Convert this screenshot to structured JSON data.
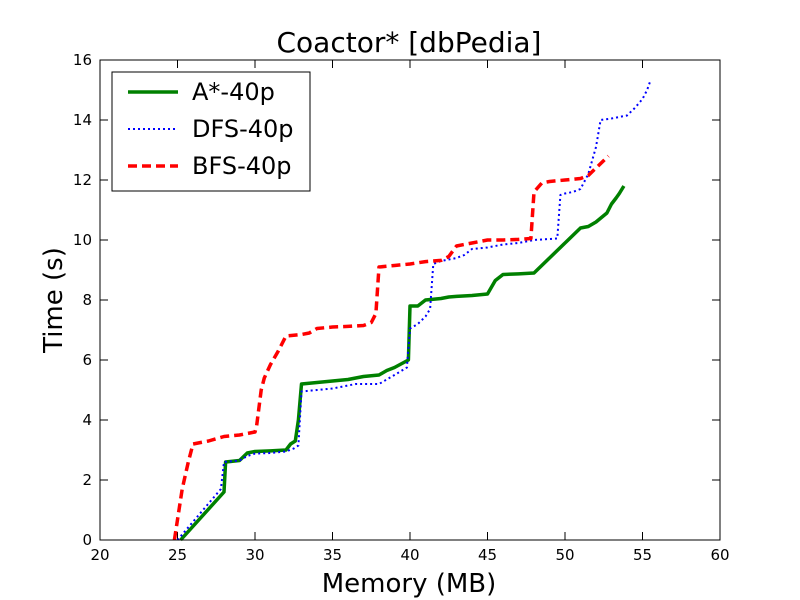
{
  "chart_data": {
    "type": "line",
    "title": "Coactor* [dbPedia]",
    "xlabel": "Memory (MB)",
    "ylabel": "Time (s)",
    "xlim": [
      20,
      60
    ],
    "ylim": [
      0,
      16
    ],
    "xticks": [
      20,
      25,
      30,
      35,
      40,
      45,
      50,
      55,
      60
    ],
    "yticks": [
      0,
      2,
      4,
      6,
      8,
      10,
      12,
      14,
      16
    ],
    "grid": false,
    "legend": "top-left",
    "series": [
      {
        "name": "A*-40p",
        "color": "#008000",
        "style": "solid",
        "points": [
          [
            25.2,
            0.0
          ],
          [
            28.0,
            1.6
          ],
          [
            28.1,
            2.6
          ],
          [
            29.0,
            2.65
          ],
          [
            29.5,
            2.9
          ],
          [
            30.0,
            2.95
          ],
          [
            31.0,
            2.97
          ],
          [
            32.0,
            3.0
          ],
          [
            32.3,
            3.2
          ],
          [
            32.6,
            3.3
          ],
          [
            32.8,
            4.0
          ],
          [
            33.0,
            5.2
          ],
          [
            34.0,
            5.25
          ],
          [
            35.0,
            5.3
          ],
          [
            36.0,
            5.35
          ],
          [
            37.0,
            5.45
          ],
          [
            38.0,
            5.5
          ],
          [
            38.5,
            5.65
          ],
          [
            39.0,
            5.75
          ],
          [
            39.9,
            6.0
          ],
          [
            40.0,
            7.8
          ],
          [
            40.5,
            7.8
          ],
          [
            41.0,
            8.0
          ],
          [
            42.0,
            8.05
          ],
          [
            42.5,
            8.1
          ],
          [
            43.0,
            8.12
          ],
          [
            44.0,
            8.15
          ],
          [
            45.0,
            8.2
          ],
          [
            45.5,
            8.65
          ],
          [
            46.0,
            8.85
          ],
          [
            47.0,
            8.87
          ],
          [
            48.0,
            8.9
          ],
          [
            51.0,
            10.4
          ],
          [
            51.5,
            10.45
          ],
          [
            52.0,
            10.6
          ],
          [
            52.7,
            10.9
          ],
          [
            53.0,
            11.2
          ],
          [
            53.3,
            11.4
          ],
          [
            53.5,
            11.55
          ],
          [
            53.8,
            11.8
          ]
        ]
      },
      {
        "name": "DFS-40p",
        "color": "#0000ff",
        "style": "dotted",
        "points": [
          [
            25.0,
            0.0
          ],
          [
            27.8,
            1.7
          ],
          [
            28.0,
            2.6
          ],
          [
            29.0,
            2.65
          ],
          [
            29.5,
            2.8
          ],
          [
            30.0,
            2.88
          ],
          [
            31.0,
            2.9
          ],
          [
            32.0,
            2.95
          ],
          [
            32.5,
            3.05
          ],
          [
            32.8,
            3.15
          ],
          [
            33.0,
            4.95
          ],
          [
            34.0,
            5.0
          ],
          [
            35.0,
            5.05
          ],
          [
            36.0,
            5.15
          ],
          [
            36.5,
            5.2
          ],
          [
            37.0,
            5.2
          ],
          [
            38.0,
            5.2
          ],
          [
            39.0,
            5.5
          ],
          [
            39.8,
            5.75
          ],
          [
            40.0,
            7.05
          ],
          [
            40.5,
            7.2
          ],
          [
            41.0,
            7.45
          ],
          [
            41.3,
            7.7
          ],
          [
            41.5,
            9.2
          ],
          [
            42.0,
            9.3
          ],
          [
            42.5,
            9.35
          ],
          [
            43.0,
            9.4
          ],
          [
            43.5,
            9.5
          ],
          [
            44.0,
            9.7
          ],
          [
            45.0,
            9.75
          ],
          [
            46.0,
            9.85
          ],
          [
            47.0,
            9.9
          ],
          [
            48.0,
            10.0
          ],
          [
            49.5,
            10.05
          ],
          [
            49.7,
            11.5
          ],
          [
            50.0,
            11.55
          ],
          [
            50.5,
            11.6
          ],
          [
            51.0,
            11.7
          ],
          [
            51.5,
            12.2
          ],
          [
            52.0,
            13.1
          ],
          [
            52.3,
            14.0
          ],
          [
            53.0,
            14.05
          ],
          [
            54.0,
            14.15
          ],
          [
            54.5,
            14.4
          ],
          [
            55.0,
            14.7
          ],
          [
            55.3,
            15.0
          ],
          [
            55.5,
            15.3
          ]
        ]
      },
      {
        "name": "BFS-40p",
        "color": "#ff0000",
        "style": "dashed",
        "points": [
          [
            24.8,
            0.0
          ],
          [
            25.3,
            1.7
          ],
          [
            25.7,
            2.6
          ],
          [
            26.0,
            3.2
          ],
          [
            27.0,
            3.3
          ],
          [
            28.0,
            3.45
          ],
          [
            29.0,
            3.5
          ],
          [
            30.0,
            3.6
          ],
          [
            30.1,
            3.8
          ],
          [
            30.4,
            5.0
          ],
          [
            30.6,
            5.4
          ],
          [
            31.0,
            5.85
          ],
          [
            31.5,
            6.3
          ],
          [
            32.0,
            6.8
          ],
          [
            33.0,
            6.85
          ],
          [
            33.5,
            6.9
          ],
          [
            34.0,
            7.05
          ],
          [
            35.0,
            7.1
          ],
          [
            36.0,
            7.12
          ],
          [
            37.0,
            7.15
          ],
          [
            37.5,
            7.25
          ],
          [
            37.8,
            7.55
          ],
          [
            38.0,
            9.1
          ],
          [
            39.0,
            9.15
          ],
          [
            40.0,
            9.2
          ],
          [
            41.0,
            9.28
          ],
          [
            42.0,
            9.32
          ],
          [
            42.5,
            9.45
          ],
          [
            43.0,
            9.8
          ],
          [
            44.0,
            9.9
          ],
          [
            45.0,
            10.0
          ],
          [
            46.0,
            10.0
          ],
          [
            47.0,
            10.02
          ],
          [
            47.8,
            10.05
          ],
          [
            48.0,
            11.6
          ],
          [
            48.5,
            11.9
          ],
          [
            49.0,
            11.95
          ],
          [
            50.0,
            12.0
          ],
          [
            51.0,
            12.05
          ],
          [
            51.5,
            12.15
          ],
          [
            52.0,
            12.4
          ],
          [
            52.5,
            12.65
          ],
          [
            52.8,
            12.8
          ]
        ]
      }
    ]
  }
}
